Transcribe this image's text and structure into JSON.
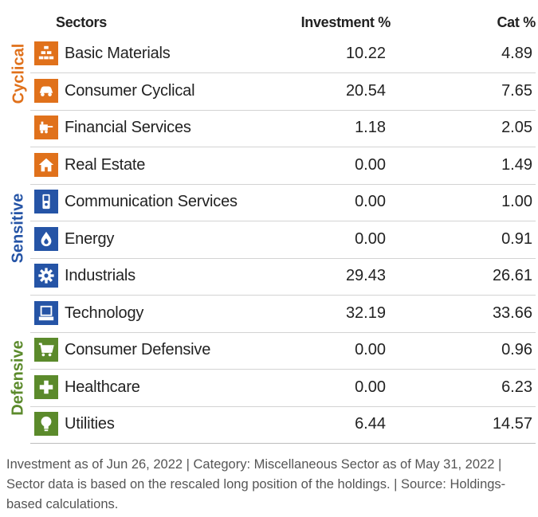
{
  "header": {
    "sectors": "Sectors",
    "investment": "Investment  %",
    "cat": "Cat  %"
  },
  "groups": [
    {
      "label": "Cyclical",
      "color": "#e0711b"
    },
    {
      "label": "Sensitive",
      "color": "#2554a6"
    },
    {
      "label": "Defensive",
      "color": "#5b8a2b"
    }
  ],
  "rows": [
    {
      "name": "Basic Materials",
      "investment": "10.22",
      "cat": "4.89",
      "icon": "basic-materials-icon",
      "color": "#e0711b"
    },
    {
      "name": "Consumer Cyclical",
      "investment": "20.54",
      "cat": "7.65",
      "icon": "consumer-cyclical-icon",
      "color": "#e0711b"
    },
    {
      "name": "Financial Services",
      "investment": "1.18",
      "cat": "2.05",
      "icon": "financial-services-icon",
      "color": "#e0711b"
    },
    {
      "name": "Real Estate",
      "investment": "0.00",
      "cat": "1.49",
      "icon": "real-estate-icon",
      "color": "#e0711b"
    },
    {
      "name": "Communication Services",
      "investment": "0.00",
      "cat": "1.00",
      "icon": "communication-services-icon",
      "color": "#2554a6"
    },
    {
      "name": "Energy",
      "investment": "0.00",
      "cat": "0.91",
      "icon": "energy-icon",
      "color": "#2554a6"
    },
    {
      "name": "Industrials",
      "investment": "29.43",
      "cat": "26.61",
      "icon": "industrials-icon",
      "color": "#2554a6"
    },
    {
      "name": "Technology",
      "investment": "32.19",
      "cat": "33.66",
      "icon": "technology-icon",
      "color": "#2554a6"
    },
    {
      "name": "Consumer Defensive",
      "investment": "0.00",
      "cat": "0.96",
      "icon": "consumer-defensive-icon",
      "color": "#5b8a2b"
    },
    {
      "name": "Healthcare",
      "investment": "0.00",
      "cat": "6.23",
      "icon": "healthcare-icon",
      "color": "#5b8a2b"
    },
    {
      "name": "Utilities",
      "investment": "6.44",
      "cat": "14.57",
      "icon": "utilities-icon",
      "color": "#5b8a2b"
    }
  ],
  "footer": "Investment as of Jun 26, 2022 | Category: Miscellaneous Sector as of May 31, 2022 | Sector data is based on the rescaled long position of the holdings. | Source: Holdings-based calculations."
}
